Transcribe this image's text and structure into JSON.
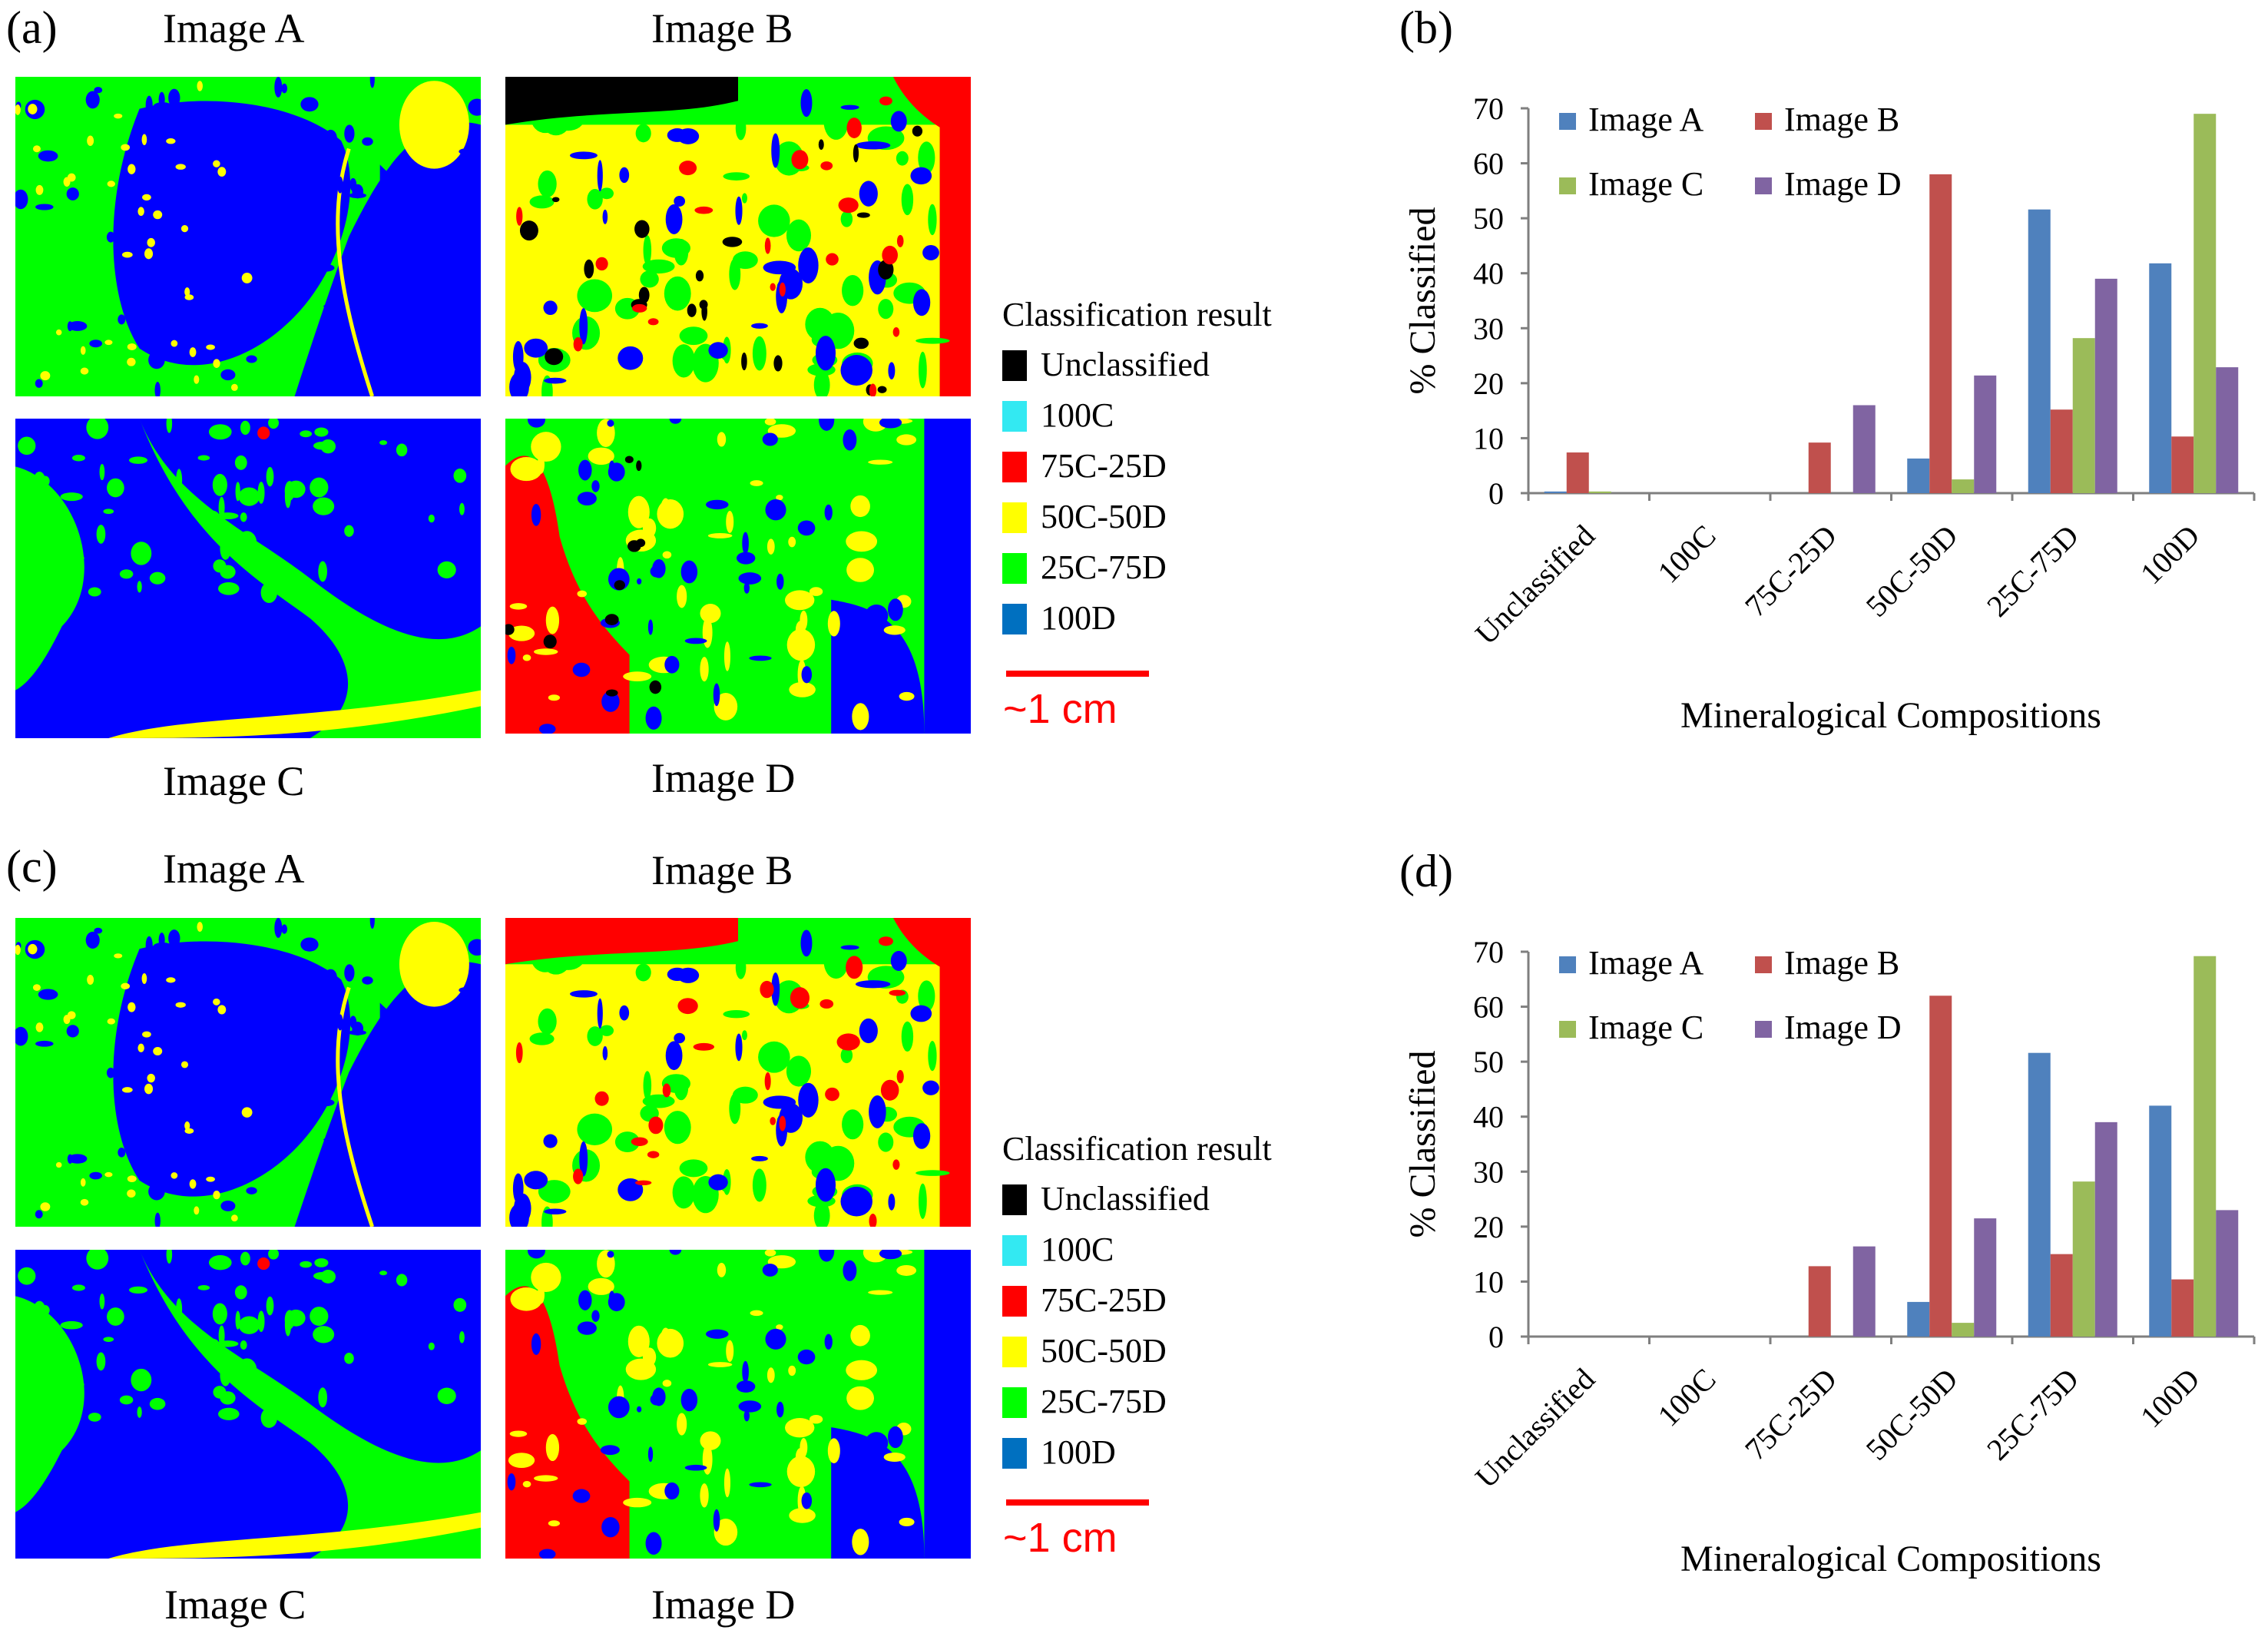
{
  "figure": {
    "top": {
      "panel_left": "(a)",
      "panel_right": "(b)",
      "titles": {
        "A": "Image A",
        "B": "Image B",
        "C": "Image C",
        "D": "Image D"
      }
    },
    "bottom": {
      "panel_left": "(c)",
      "panel_right": "(d)",
      "titles": {
        "A": "Image A",
        "B": "Image B",
        "C": "Image C",
        "D": "Image D"
      }
    },
    "legend": {
      "title": "Classification result",
      "items": [
        {
          "label": "Unclassified",
          "color": "#000000"
        },
        {
          "label": "100C",
          "color": "#33e9f2"
        },
        {
          "label": "75C-25D",
          "color": "#ff0000"
        },
        {
          "label": "50C-50D",
          "color": "#ffff00"
        },
        {
          "label": "25C-75D",
          "color": "#00ff00"
        },
        {
          "label": "100D",
          "color": "#0070c0"
        }
      ]
    },
    "scale": {
      "label": "~1 cm",
      "color": "#ff0000"
    },
    "map_colors": {
      "blue": "#0000ff",
      "green": "#00ff00",
      "yellow": "#ffff00",
      "red": "#ff0000",
      "black": "#000000"
    }
  },
  "chart_data": [
    {
      "panel": "(b)",
      "type": "bar",
      "title": "",
      "xlabel": "Mineralogical Compositions",
      "ylabel": "% Classified",
      "ylim": [
        0,
        70
      ],
      "yticks": [
        "0",
        "10",
        "20",
        "30",
        "40",
        "50",
        "60",
        "70"
      ],
      "categories": [
        "Unclassified",
        "100C",
        "75C-25D",
        "50C-50D",
        "25C-75D",
        "100D"
      ],
      "legend_position": "top-left",
      "series": [
        {
          "name": "Image A",
          "color": "#4f81bd",
          "values": [
            0.3,
            0,
            0,
            6.3,
            51.6,
            41.8
          ]
        },
        {
          "name": "Image B",
          "color": "#c0504d",
          "values": [
            7.4,
            0,
            9.2,
            58.0,
            15.2,
            10.3
          ]
        },
        {
          "name": "Image C",
          "color": "#9bbb59",
          "values": [
            0.3,
            0,
            0,
            2.5,
            28.2,
            69.0
          ]
        },
        {
          "name": "Image D",
          "color": "#8064a2",
          "values": [
            0,
            0,
            16.0,
            21.4,
            39.0,
            22.9
          ]
        }
      ]
    },
    {
      "panel": "(d)",
      "type": "bar",
      "title": "",
      "xlabel": "Mineralogical Compositions",
      "ylabel": "% Classified",
      "ylim": [
        0,
        70
      ],
      "yticks": [
        "0",
        "10",
        "20",
        "30",
        "40",
        "50",
        "60",
        "70"
      ],
      "categories": [
        "Unclassified",
        "100C",
        "75C-25D",
        "50C-50D",
        "25C-75D",
        "100D"
      ],
      "legend_position": "top-left",
      "series": [
        {
          "name": "Image A",
          "color": "#4f81bd",
          "values": [
            0,
            0,
            0,
            6.3,
            51.6,
            42.0
          ]
        },
        {
          "name": "Image B",
          "color": "#c0504d",
          "values": [
            0,
            0,
            12.8,
            62.0,
            15.0,
            10.4
          ]
        },
        {
          "name": "Image C",
          "color": "#9bbb59",
          "values": [
            0,
            0,
            0,
            2.5,
            28.2,
            69.2
          ]
        },
        {
          "name": "Image D",
          "color": "#8064a2",
          "values": [
            0,
            0,
            16.4,
            21.5,
            39.0,
            23.0
          ]
        }
      ]
    }
  ]
}
